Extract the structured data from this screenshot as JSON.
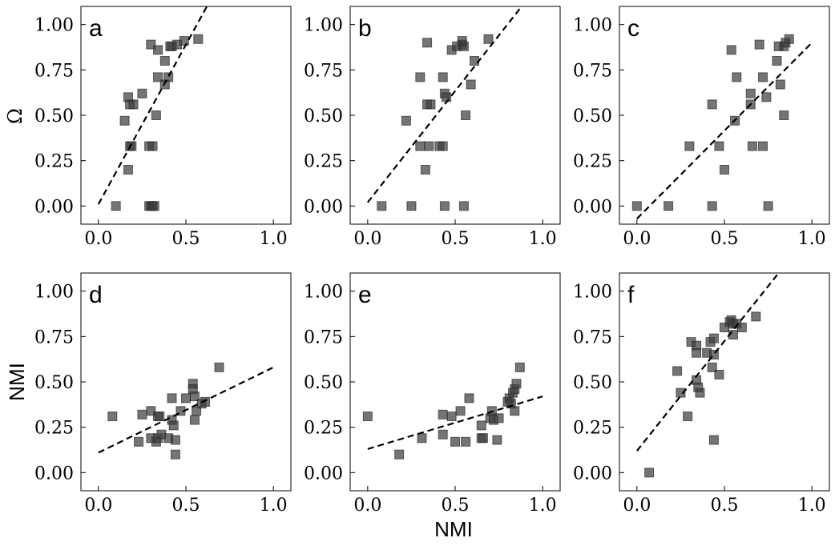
{
  "figure": {
    "ylabel_top": "Ω",
    "ylabel_bottom": "NMI",
    "xlabel": "NMI"
  },
  "chart_data": [
    {
      "type": "scatter",
      "panel": "a",
      "row": 0,
      "col": 0,
      "xlim": [
        -0.1,
        1.1
      ],
      "ylim": [
        -0.1,
        1.1
      ],
      "xticks": [
        "0.0",
        "0.5",
        "1.0"
      ],
      "yticks": [
        "0.00",
        "0.25",
        "0.50",
        "0.75",
        "1.00"
      ],
      "fit": [
        [
          0.0,
          0.01
        ],
        [
          0.62,
          1.1
        ]
      ],
      "points": [
        [
          0.1,
          0.0
        ],
        [
          0.29,
          0.0
        ],
        [
          0.3,
          0.0
        ],
        [
          0.31,
          0.0
        ],
        [
          0.32,
          0.0
        ],
        [
          0.17,
          0.2
        ],
        [
          0.18,
          0.33
        ],
        [
          0.19,
          0.33
        ],
        [
          0.29,
          0.33
        ],
        [
          0.31,
          0.33
        ],
        [
          0.33,
          0.5
        ],
        [
          0.18,
          0.56
        ],
        [
          0.2,
          0.56
        ],
        [
          0.17,
          0.6
        ],
        [
          0.15,
          0.47
        ],
        [
          0.25,
          0.62
        ],
        [
          0.38,
          0.67
        ],
        [
          0.4,
          0.71
        ],
        [
          0.34,
          0.71
        ],
        [
          0.38,
          0.8
        ],
        [
          0.3,
          0.89
        ],
        [
          0.34,
          0.86
        ],
        [
          0.41,
          0.88
        ],
        [
          0.42,
          0.88
        ],
        [
          0.45,
          0.89
        ],
        [
          0.49,
          0.91
        ],
        [
          0.57,
          0.92
        ]
      ]
    },
    {
      "type": "scatter",
      "panel": "b",
      "row": 0,
      "col": 1,
      "xlim": [
        -0.1,
        1.1
      ],
      "ylim": [
        -0.1,
        1.1
      ],
      "xticks": [
        "0.0",
        "0.5",
        "1.0"
      ],
      "yticks": [
        "0.00",
        "0.25",
        "0.50",
        "0.75",
        "1.00"
      ],
      "fit": [
        [
          0.0,
          0.02
        ],
        [
          0.88,
          1.1
        ]
      ],
      "points": [
        [
          0.08,
          0.0
        ],
        [
          0.25,
          0.0
        ],
        [
          0.44,
          0.0
        ],
        [
          0.55,
          0.0
        ],
        [
          0.33,
          0.2
        ],
        [
          0.3,
          0.33
        ],
        [
          0.35,
          0.33
        ],
        [
          0.41,
          0.33
        ],
        [
          0.43,
          0.33
        ],
        [
          0.22,
          0.47
        ],
        [
          0.34,
          0.56
        ],
        [
          0.36,
          0.56
        ],
        [
          0.56,
          0.5
        ],
        [
          0.3,
          0.71
        ],
        [
          0.43,
          0.71
        ],
        [
          0.44,
          0.62
        ],
        [
          0.45,
          0.6
        ],
        [
          0.59,
          0.67
        ],
        [
          0.61,
          0.8
        ],
        [
          0.48,
          0.86
        ],
        [
          0.51,
          0.88
        ],
        [
          0.54,
          0.89
        ],
        [
          0.55,
          0.88
        ],
        [
          0.54,
          0.91
        ],
        [
          0.34,
          0.9
        ],
        [
          0.69,
          0.92
        ]
      ]
    },
    {
      "type": "scatter",
      "panel": "c",
      "row": 0,
      "col": 2,
      "xlim": [
        -0.1,
        1.1
      ],
      "ylim": [
        -0.1,
        1.1
      ],
      "xticks": [
        "0.0",
        "0.5",
        "1.0"
      ],
      "yticks": [
        "0.00",
        "0.25",
        "0.50",
        "0.75",
        "1.00"
      ],
      "fit": [
        [
          0.0,
          -0.07
        ],
        [
          1.0,
          0.9
        ]
      ],
      "points": [
        [
          0.0,
          0.0
        ],
        [
          0.18,
          0.0
        ],
        [
          0.43,
          0.0
        ],
        [
          0.75,
          0.0
        ],
        [
          0.5,
          0.2
        ],
        [
          0.3,
          0.33
        ],
        [
          0.47,
          0.33
        ],
        [
          0.66,
          0.33
        ],
        [
          0.72,
          0.33
        ],
        [
          0.43,
          0.56
        ],
        [
          0.56,
          0.47
        ],
        [
          0.65,
          0.56
        ],
        [
          0.65,
          0.62
        ],
        [
          0.74,
          0.6
        ],
        [
          0.84,
          0.5
        ],
        [
          0.57,
          0.71
        ],
        [
          0.72,
          0.71
        ],
        [
          0.82,
          0.67
        ],
        [
          0.54,
          0.86
        ],
        [
          0.7,
          0.89
        ],
        [
          0.8,
          0.8
        ],
        [
          0.81,
          0.88
        ],
        [
          0.84,
          0.88
        ],
        [
          0.85,
          0.9
        ],
        [
          0.87,
          0.92
        ]
      ]
    },
    {
      "type": "scatter",
      "panel": "d",
      "row": 1,
      "col": 0,
      "xlim": [
        -0.1,
        1.1
      ],
      "ylim": [
        -0.1,
        1.1
      ],
      "xticks": [
        "0.0",
        "0.5",
        "1.0"
      ],
      "yticks": [
        "0.00",
        "0.25",
        "0.50",
        "0.75",
        "1.00"
      ],
      "fit": [
        [
          0.0,
          0.11
        ],
        [
          1.0,
          0.58
        ]
      ],
      "points": [
        [
          0.08,
          0.31
        ],
        [
          0.25,
          0.32
        ],
        [
          0.23,
          0.17
        ],
        [
          0.3,
          0.19
        ],
        [
          0.3,
          0.34
        ],
        [
          0.33,
          0.17
        ],
        [
          0.34,
          0.19
        ],
        [
          0.34,
          0.31
        ],
        [
          0.35,
          0.31
        ],
        [
          0.36,
          0.21
        ],
        [
          0.4,
          0.19
        ],
        [
          0.42,
          0.29
        ],
        [
          0.43,
          0.26
        ],
        [
          0.44,
          0.18
        ],
        [
          0.44,
          0.1
        ],
        [
          0.42,
          0.41
        ],
        [
          0.47,
          0.34
        ],
        [
          0.5,
          0.41
        ],
        [
          0.54,
          0.49
        ],
        [
          0.54,
          0.46
        ],
        [
          0.55,
          0.42
        ],
        [
          0.55,
          0.29
        ],
        [
          0.56,
          0.34
        ],
        [
          0.59,
          0.38
        ],
        [
          0.61,
          0.39
        ],
        [
          0.69,
          0.58
        ]
      ]
    },
    {
      "type": "scatter",
      "panel": "e",
      "row": 1,
      "col": 1,
      "xlim": [
        -0.1,
        1.1
      ],
      "ylim": [
        -0.1,
        1.1
      ],
      "xticks": [
        "0.0",
        "0.5",
        "1.0"
      ],
      "yticks": [
        "0.00",
        "0.25",
        "0.50",
        "0.75",
        "1.00"
      ],
      "fit": [
        [
          0.0,
          0.13
        ],
        [
          1.0,
          0.42
        ]
      ],
      "points": [
        [
          0.0,
          0.31
        ],
        [
          0.18,
          0.1
        ],
        [
          0.31,
          0.19
        ],
        [
          0.43,
          0.32
        ],
        [
          0.43,
          0.21
        ],
        [
          0.48,
          0.31
        ],
        [
          0.5,
          0.17
        ],
        [
          0.53,
          0.34
        ],
        [
          0.56,
          0.17
        ],
        [
          0.58,
          0.41
        ],
        [
          0.65,
          0.26
        ],
        [
          0.65,
          0.19
        ],
        [
          0.66,
          0.19
        ],
        [
          0.7,
          0.3
        ],
        [
          0.71,
          0.34
        ],
        [
          0.72,
          0.29
        ],
        [
          0.74,
          0.18
        ],
        [
          0.75,
          0.3
        ],
        [
          0.8,
          0.39
        ],
        [
          0.81,
          0.41
        ],
        [
          0.82,
          0.38
        ],
        [
          0.83,
          0.44
        ],
        [
          0.84,
          0.46
        ],
        [
          0.84,
          0.34
        ],
        [
          0.85,
          0.49
        ],
        [
          0.87,
          0.58
        ]
      ]
    },
    {
      "type": "scatter",
      "panel": "f",
      "row": 1,
      "col": 2,
      "xlim": [
        -0.1,
        1.1
      ],
      "ylim": [
        -0.1,
        1.1
      ],
      "xticks": [
        "0.0",
        "0.5",
        "1.0"
      ],
      "yticks": [
        "0.00",
        "0.25",
        "0.50",
        "0.75",
        "1.00"
      ],
      "fit": [
        [
          0.0,
          0.12
        ],
        [
          0.81,
          1.1
        ]
      ],
      "points": [
        [
          0.07,
          0.0
        ],
        [
          0.29,
          0.31
        ],
        [
          0.44,
          0.18
        ],
        [
          0.23,
          0.56
        ],
        [
          0.25,
          0.44
        ],
        [
          0.31,
          0.72
        ],
        [
          0.34,
          0.7
        ],
        [
          0.34,
          0.66
        ],
        [
          0.34,
          0.51
        ],
        [
          0.35,
          0.47
        ],
        [
          0.36,
          0.44
        ],
        [
          0.4,
          0.66
        ],
        [
          0.42,
          0.72
        ],
        [
          0.43,
          0.58
        ],
        [
          0.44,
          0.74
        ],
        [
          0.44,
          0.65
        ],
        [
          0.47,
          0.54
        ],
        [
          0.5,
          0.8
        ],
        [
          0.53,
          0.83
        ],
        [
          0.54,
          0.84
        ],
        [
          0.55,
          0.76
        ],
        [
          0.55,
          0.82
        ],
        [
          0.57,
          0.82
        ],
        [
          0.6,
          0.8
        ],
        [
          0.68,
          0.86
        ]
      ]
    }
  ]
}
